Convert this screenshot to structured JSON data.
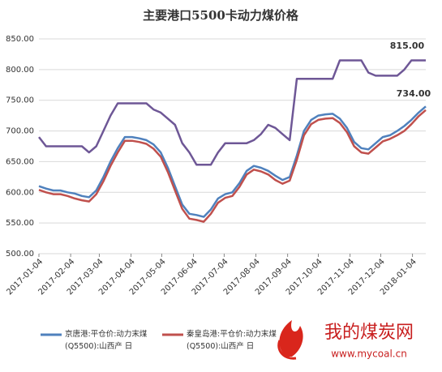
{
  "chart_data": {
    "type": "line",
    "title": "主要港口5500卡动力煤价格",
    "annotations": [
      "815.00",
      "734.00"
    ],
    "x": [
      "2017-01-04",
      "2017-01-11",
      "2017-01-18",
      "2017-01-25",
      "2017-02-01",
      "2017-02-08",
      "2017-02-15",
      "2017-02-22",
      "2017-03-01",
      "2017-03-08",
      "2017-03-15",
      "2017-03-22",
      "2017-03-29",
      "2017-04-05",
      "2017-04-12",
      "2017-04-19",
      "2017-04-26",
      "2017-05-03",
      "2017-05-10",
      "2017-05-17",
      "2017-05-24",
      "2017-05-31",
      "2017-06-07",
      "2017-06-14",
      "2017-06-21",
      "2017-06-28",
      "2017-07-05",
      "2017-07-12",
      "2017-07-19",
      "2017-07-26",
      "2017-08-02",
      "2017-08-09",
      "2017-08-16",
      "2017-08-23",
      "2017-08-30",
      "2017-09-06",
      "2017-09-13",
      "2017-09-20",
      "2017-09-27",
      "2017-10-04",
      "2017-10-11",
      "2017-10-18",
      "2017-10-25",
      "2017-11-01",
      "2017-11-08",
      "2017-11-15",
      "2017-11-22",
      "2017-11-29",
      "2017-12-06",
      "2017-12-13",
      "2017-12-20",
      "2017-12-27",
      "2018-01-03",
      "2018-01-10",
      "2018-01-17"
    ],
    "xlim": [
      "2017-01-04",
      "2018-01-17"
    ],
    "xticks": [
      "2017-01-04",
      "2017-02-04",
      "2017-03-04",
      "2017-04-04",
      "2017-05-04",
      "2017-06-04",
      "2017-07-04",
      "2017-08-04",
      "2017-09-04",
      "2017-10-04",
      "2017-11-04",
      "2017-12-04",
      "2018-01-04"
    ],
    "ylim": [
      500,
      850
    ],
    "yticks": [
      {
        "value": 500,
        "label": "500.00"
      },
      {
        "value": 550,
        "label": "550.00"
      },
      {
        "value": 600,
        "label": "600.00"
      },
      {
        "value": 650,
        "label": "650.00"
      },
      {
        "value": 700,
        "label": "700.00"
      },
      {
        "value": 750,
        "label": "750.00"
      },
      {
        "value": 800,
        "label": "800.00"
      },
      {
        "value": 850,
        "label": "850.00"
      }
    ],
    "series": [
      {
        "name": "京唐港:平仓价:动力末煤(Q5500):山西产 日",
        "color": "#4f81bd",
        "values": [
          610,
          606,
          603,
          603,
          600,
          598,
          594,
          592,
          603,
          625,
          650,
          672,
          690,
          690,
          688,
          685,
          678,
          665,
          640,
          610,
          580,
          565,
          563,
          560,
          572,
          590,
          597,
          600,
          615,
          635,
          643,
          640,
          635,
          627,
          620,
          625,
          660,
          700,
          718,
          725,
          727,
          728,
          720,
          705,
          682,
          672,
          670,
          680,
          690,
          693,
          700,
          708,
          718,
          730,
          740
        ]
      },
      {
        "name": "秦皇岛港:平仓价:动力末煤(Q5500):山西产 日",
        "color": "#c0504d",
        "values": [
          604,
          600,
          597,
          597,
          594,
          590,
          587,
          585,
          597,
          618,
          643,
          665,
          684,
          684,
          682,
          679,
          671,
          658,
          633,
          603,
          573,
          557,
          555,
          552,
          565,
          583,
          591,
          594,
          609,
          629,
          637,
          634,
          629,
          620,
          614,
          619,
          653,
          693,
          711,
          718,
          720,
          721,
          713,
          698,
          675,
          665,
          663,
          673,
          683,
          687,
          693,
          700,
          711,
          724,
          734
        ]
      },
      {
        "color": "#6e5796",
        "values": [
          690,
          675,
          675,
          675,
          675,
          675,
          675,
          665,
          675,
          700,
          725,
          745,
          745,
          745,
          745,
          745,
          735,
          730,
          720,
          710,
          680,
          665,
          645,
          645,
          645,
          665,
          680,
          680,
          680,
          680,
          685,
          695,
          710,
          705,
          695,
          685,
          785,
          785,
          785,
          785,
          785,
          785,
          815,
          815,
          815,
          815,
          795,
          790,
          790,
          790,
          790,
          800,
          815,
          815,
          815
        ]
      }
    ]
  },
  "watermark": {
    "brand": "我的煤炭网",
    "url": "www.mycoal.cn"
  }
}
